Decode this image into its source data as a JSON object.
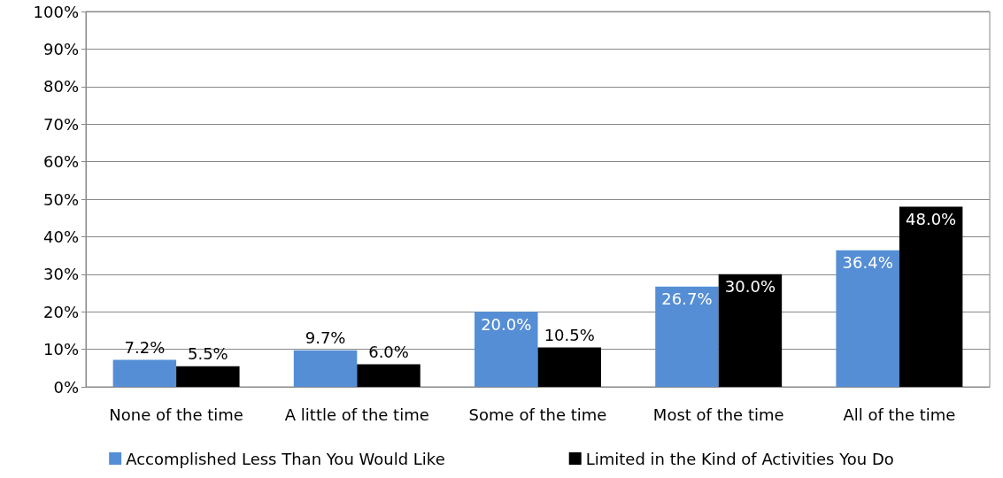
{
  "chart_data": {
    "type": "bar",
    "categories": [
      "None of the time",
      "A little of the time",
      "Some of the time",
      "Most of the time",
      "All of the time"
    ],
    "series": [
      {
        "name": "Accomplished Less Than You Would Like",
        "color": "#558ed5",
        "values": [
          7.2,
          9.7,
          20.0,
          26.7,
          36.4
        ],
        "value_labels": [
          "7.2%",
          "9.7%",
          "20.0%",
          "26.7%",
          "36.4%"
        ]
      },
      {
        "name": "Limited in the Kind of Activities You Do",
        "color": "#000000",
        "values": [
          5.5,
          6.0,
          10.5,
          30.0,
          48.0
        ],
        "value_labels": [
          "5.5%",
          "6.0%",
          "10.5%",
          "30.0%",
          "48.0%"
        ]
      }
    ],
    "ylim": [
      0,
      100
    ],
    "yticks": [
      {
        "value": 0,
        "label": "0%"
      },
      {
        "value": 10,
        "label": "10%"
      },
      {
        "value": 20,
        "label": "20%"
      },
      {
        "value": 30,
        "label": "30%"
      },
      {
        "value": 40,
        "label": "40%"
      },
      {
        "value": 50,
        "label": "50%"
      },
      {
        "value": 60,
        "label": "60%"
      },
      {
        "value": 70,
        "label": "70%"
      },
      {
        "value": 80,
        "label": "80%"
      },
      {
        "value": 90,
        "label": "90%"
      },
      {
        "value": 100,
        "label": "100%"
      }
    ],
    "grid": "y",
    "legend": "bottom"
  }
}
